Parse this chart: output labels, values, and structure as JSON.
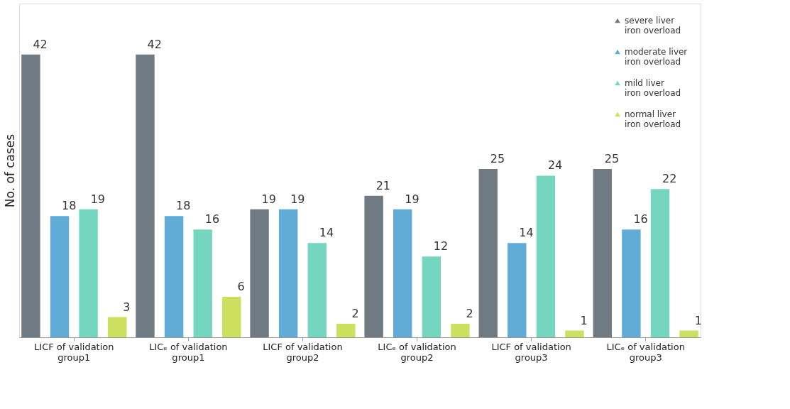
{
  "chart_data": {
    "type": "bar",
    "ylabel": "No. of cases",
    "data_labels": true,
    "legend": "top right",
    "marker": "triangle",
    "grid": false,
    "categories": [
      "LICF of validation group1",
      "LICₑ of validation group1",
      "LICF of validation group2",
      "LICₑ of validation group2",
      "LICF of validation group3",
      "LICₑ of validation group3"
    ],
    "series": [
      {
        "name": "severe liver iron overload",
        "color": "#5f6b75",
        "values": [
          42,
          42,
          19,
          21,
          25,
          25
        ]
      },
      {
        "name": "moderate liver iron overload",
        "color": "#4fa3d3",
        "values": [
          18,
          18,
          19,
          19,
          14,
          16
        ]
      },
      {
        "name": "mild liver iron overload",
        "color": "#66d2b8",
        "values": [
          19,
          16,
          14,
          12,
          24,
          22
        ]
      },
      {
        "name": "normal liver iron overload",
        "color": "#c8dc4c",
        "values": [
          3,
          6,
          2,
          2,
          1,
          1
        ]
      }
    ]
  }
}
